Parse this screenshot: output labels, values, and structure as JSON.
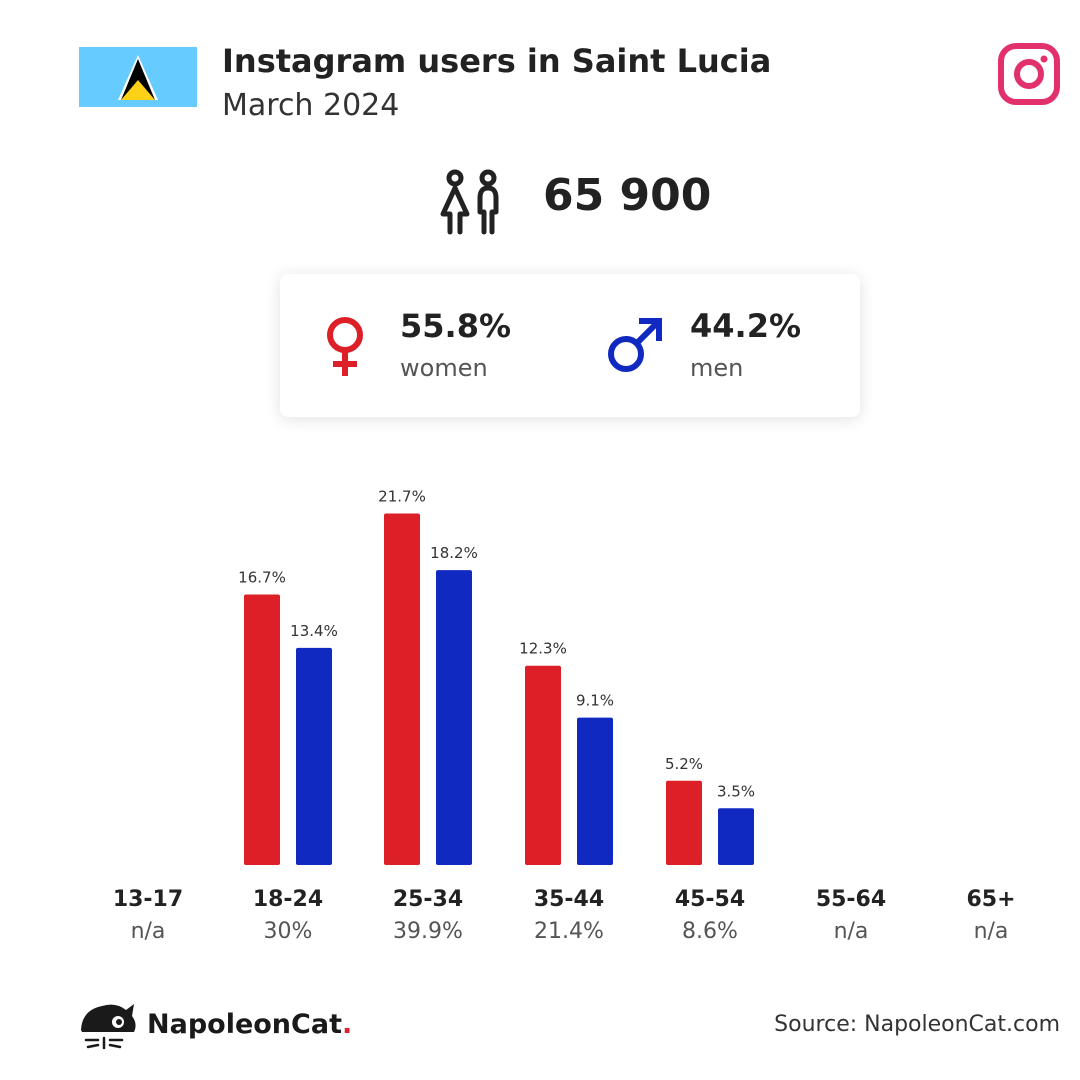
{
  "header": {
    "title": "Instagram users in Saint Lucia",
    "subtitle": "March 2024"
  },
  "icons": {
    "flag": "saint-lucia-flag-icon",
    "platform": "instagram-icon",
    "users": "users-icon",
    "female": "female-icon",
    "male": "male-icon",
    "logo": "napoleoncat-logo-icon"
  },
  "total_users": "65 900",
  "gender": {
    "women": {
      "pct": "55.8%",
      "label": "women"
    },
    "men": {
      "pct": "44.2%",
      "label": "men"
    }
  },
  "colors": {
    "women": "#dd1f27",
    "men": "#1029c1",
    "instagram": "#e1306c",
    "flag_blue": "#66ccff",
    "flag_yellow": "#fcd116"
  },
  "chart_data": {
    "type": "bar",
    "categories": [
      "13-17",
      "18-24",
      "25-34",
      "35-44",
      "45-54",
      "55-64",
      "65+"
    ],
    "category_totals": [
      "n/a",
      "30%",
      "39.9%",
      "21.4%",
      "8.6%",
      "n/a",
      "n/a"
    ],
    "series": [
      {
        "name": "women",
        "values": [
          null,
          16.7,
          21.7,
          12.3,
          5.2,
          null,
          null
        ],
        "labels": [
          "",
          "16.7%",
          "21.7%",
          "12.3%",
          "5.2%",
          "",
          ""
        ]
      },
      {
        "name": "men",
        "values": [
          null,
          13.4,
          18.2,
          9.1,
          3.5,
          null,
          null
        ],
        "labels": [
          "",
          "13.4%",
          "18.2%",
          "9.1%",
          "3.5%",
          "",
          ""
        ]
      }
    ],
    "unit": "%",
    "grid": false,
    "legend": "none"
  },
  "footer": {
    "brand_main": "NapoleonCat",
    "brand_dot": ".",
    "source": "Source: NapoleonCat.com"
  }
}
